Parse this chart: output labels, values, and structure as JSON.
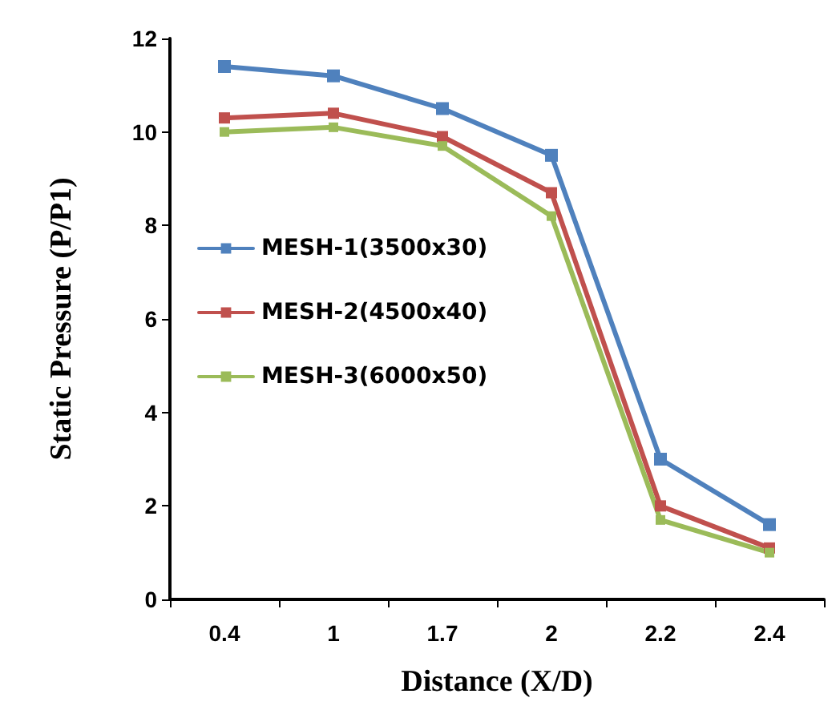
{
  "chart_data": {
    "type": "line",
    "xlabel": "Distance (X/D)",
    "ylabel": "Static Pressure (P/P1)",
    "categories": [
      "0.4",
      "1",
      "1.7",
      "2",
      "2.2",
      "2.4"
    ],
    "series": [
      {
        "name": "MESH-1(3500x30)",
        "color": "#4f81bd",
        "values": [
          11.4,
          11.2,
          10.5,
          9.5,
          3.0,
          1.6
        ]
      },
      {
        "name": "MESH-2(4500x40)",
        "color": "#c0504d",
        "values": [
          10.3,
          10.4,
          9.9,
          8.7,
          2.0,
          1.1
        ]
      },
      {
        "name": "MESH-3(6000x50)",
        "color": "#9bbb59",
        "values": [
          10.0,
          10.1,
          9.7,
          8.2,
          1.7,
          1.0
        ]
      }
    ],
    "ylim": [
      0,
      12
    ],
    "yticks": [
      0,
      2,
      4,
      6,
      8,
      10,
      12
    ],
    "grid": false,
    "legend": "left",
    "marker": "square",
    "line_style": "solid"
  }
}
